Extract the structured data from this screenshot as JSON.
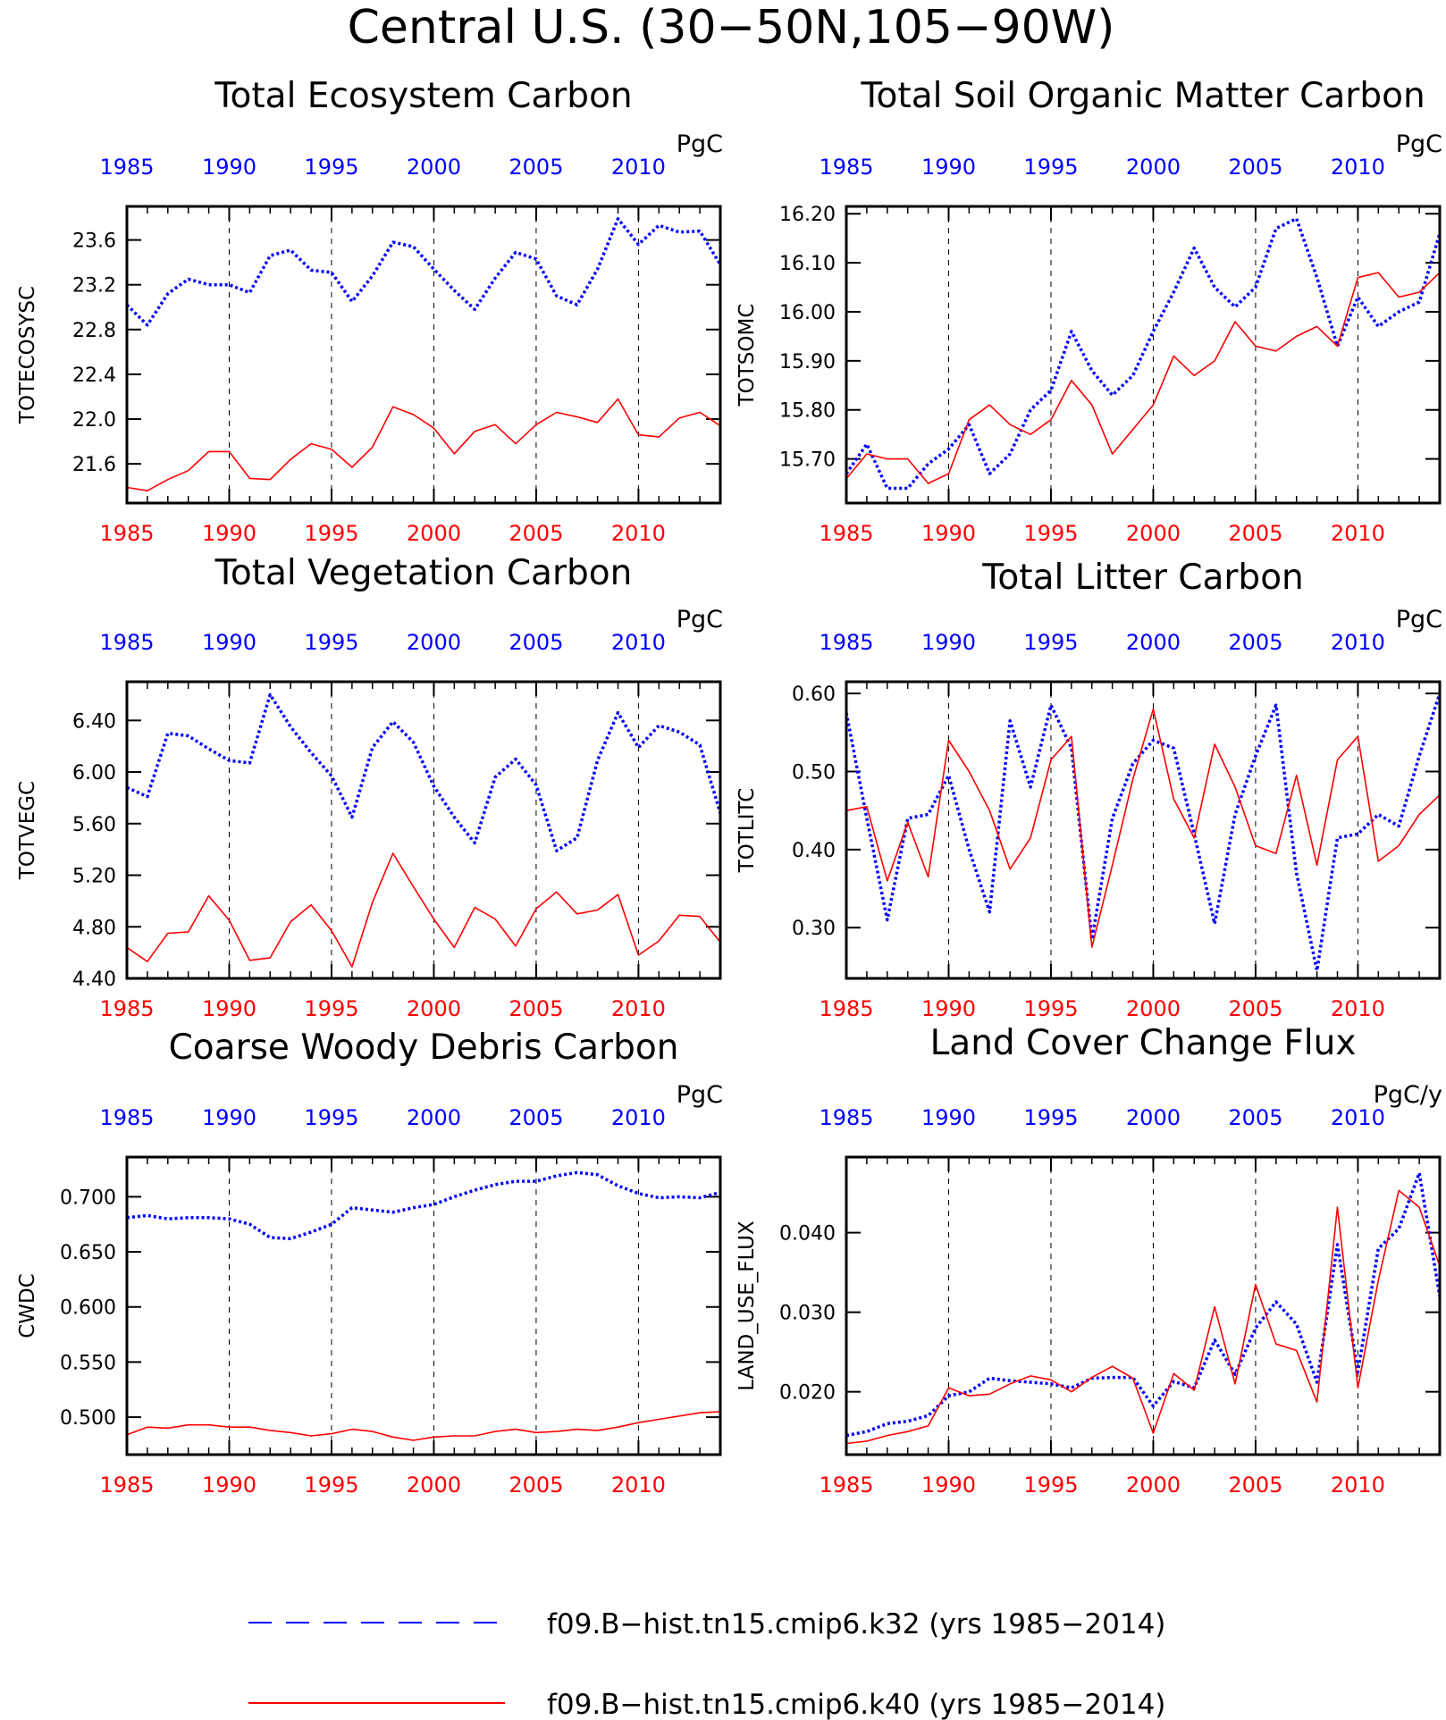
{
  "figure": {
    "title": "Central U.S. (30−50N,105−90W)",
    "legend": [
      {
        "label": "f09.B−hist.tn15.cmip6.k32 (yrs 1985−2014)",
        "color": "#0000ff",
        "style": "dashed"
      },
      {
        "label": "f09.B−hist.tn15.cmip6.k40 (yrs 1985−2014)",
        "color": "#ff0000",
        "style": "solid"
      }
    ]
  },
  "chart_data": [
    {
      "type": "line",
      "title": "Total Ecosystem Carbon",
      "ylabel": "TOTECOSYSC",
      "units": "PgC",
      "xlim": [
        1985,
        2014
      ],
      "ylim": [
        21.25,
        23.9
      ],
      "yticks": [
        "21.6",
        "22.0",
        "22.4",
        "22.8",
        "23.2",
        "23.6"
      ],
      "xticks": [
        "1985",
        "1990",
        "1995",
        "2000",
        "2005",
        "2010"
      ],
      "x": [
        1985,
        1986,
        1987,
        1988,
        1989,
        1990,
        1991,
        1992,
        1993,
        1994,
        1995,
        1996,
        1997,
        1998,
        1999,
        2000,
        2001,
        2002,
        2003,
        2004,
        2005,
        2006,
        2007,
        2008,
        2009,
        2010,
        2011,
        2012,
        2013,
        2014
      ],
      "series": [
        {
          "color": "#0000ff",
          "style": "dashed",
          "values": [
            23.02,
            22.84,
            23.12,
            23.25,
            23.2,
            23.2,
            23.13,
            23.46,
            23.51,
            23.33,
            23.31,
            23.05,
            23.28,
            23.58,
            23.54,
            23.34,
            23.15,
            22.98,
            23.26,
            23.49,
            23.43,
            23.1,
            23.02,
            23.34,
            23.79,
            23.56,
            23.73,
            23.67,
            23.68,
            23.38
          ]
        },
        {
          "color": "#ff0000",
          "style": "solid",
          "values": [
            21.39,
            21.36,
            21.46,
            21.54,
            21.71,
            21.71,
            21.47,
            21.46,
            21.64,
            21.78,
            21.73,
            21.57,
            21.75,
            22.11,
            22.04,
            21.92,
            21.69,
            21.89,
            21.95,
            21.78,
            21.95,
            22.06,
            22.02,
            21.97,
            22.18,
            21.86,
            21.84,
            22.01,
            22.06,
            21.94
          ]
        }
      ]
    },
    {
      "type": "line",
      "title": "Total Soil Organic Matter Carbon",
      "ylabel": "TOTSOMC",
      "units": "PgC",
      "xlim": [
        1985,
        2014
      ],
      "ylim": [
        15.61,
        16.215
      ],
      "yticks": [
        "15.70",
        "15.80",
        "15.90",
        "16.00",
        "16.10",
        "16.20"
      ],
      "xticks": [
        "1985",
        "1990",
        "1995",
        "2000",
        "2005",
        "2010"
      ],
      "x": [
        1985,
        1986,
        1987,
        1988,
        1989,
        1990,
        1991,
        1992,
        1993,
        1994,
        1995,
        1996,
        1997,
        1998,
        1999,
        2000,
        2001,
        2002,
        2003,
        2004,
        2005,
        2006,
        2007,
        2008,
        2009,
        2010,
        2011,
        2012,
        2013,
        2014
      ],
      "series": [
        {
          "color": "#0000ff",
          "style": "dashed",
          "values": [
            15.67,
            15.73,
            15.64,
            15.64,
            15.69,
            15.72,
            15.77,
            15.67,
            15.71,
            15.8,
            15.84,
            15.96,
            15.88,
            15.83,
            15.87,
            15.96,
            16.04,
            16.13,
            16.05,
            16.01,
            16.05,
            16.17,
            16.19,
            16.07,
            15.93,
            16.03,
            15.97,
            16.0,
            16.02,
            16.16
          ]
        },
        {
          "color": "#ff0000",
          "style": "solid",
          "values": [
            15.66,
            15.71,
            15.7,
            15.7,
            15.65,
            15.67,
            15.78,
            15.81,
            15.77,
            15.75,
            15.78,
            15.86,
            15.81,
            15.71,
            15.76,
            15.81,
            15.91,
            15.87,
            15.9,
            15.98,
            15.93,
            15.92,
            15.95,
            15.97,
            15.93,
            16.07,
            16.08,
            16.03,
            16.04,
            16.08
          ]
        }
      ]
    },
    {
      "type": "line",
      "title": "Total Vegetation Carbon",
      "ylabel": "TOTVEGC",
      "units": "PgC",
      "xlim": [
        1985,
        2014
      ],
      "ylim": [
        4.4,
        6.7
      ],
      "yticks": [
        "4.40",
        "4.80",
        "5.20",
        "5.60",
        "6.00",
        "6.40"
      ],
      "xticks": [
        "1985",
        "1990",
        "1995",
        "2000",
        "2005",
        "2010"
      ],
      "x": [
        1985,
        1986,
        1987,
        1988,
        1989,
        1990,
        1991,
        1992,
        1993,
        1994,
        1995,
        1996,
        1997,
        1998,
        1999,
        2000,
        2001,
        2002,
        2003,
        2004,
        2005,
        2006,
        2007,
        2008,
        2009,
        2010,
        2011,
        2012,
        2013,
        2014
      ],
      "series": [
        {
          "color": "#0000ff",
          "style": "dashed",
          "values": [
            5.88,
            5.81,
            6.3,
            6.28,
            6.18,
            6.09,
            6.07,
            6.6,
            6.35,
            6.15,
            5.97,
            5.65,
            6.19,
            6.39,
            6.23,
            5.89,
            5.65,
            5.45,
            5.96,
            6.1,
            5.9,
            5.39,
            5.49,
            6.09,
            6.46,
            6.19,
            6.36,
            6.31,
            6.21,
            5.68
          ]
        },
        {
          "color": "#ff0000",
          "style": "solid",
          "values": [
            4.64,
            4.53,
            4.75,
            4.76,
            5.04,
            4.85,
            4.54,
            4.56,
            4.84,
            4.97,
            4.77,
            4.49,
            4.99,
            5.37,
            5.11,
            4.86,
            4.64,
            4.95,
            4.86,
            4.65,
            4.94,
            5.07,
            4.9,
            4.93,
            5.05,
            4.58,
            4.69,
            4.89,
            4.88,
            4.68
          ]
        }
      ]
    },
    {
      "type": "line",
      "title": "Total Litter Carbon",
      "ylabel": "TOTLITC",
      "units": "PgC",
      "xlim": [
        1985,
        2014
      ],
      "ylim": [
        0.235,
        0.615
      ],
      "yticks": [
        "0.30",
        "0.40",
        "0.50",
        "0.60"
      ],
      "xticks": [
        "1985",
        "1990",
        "1995",
        "2000",
        "2005",
        "2010"
      ],
      "x": [
        1985,
        1986,
        1987,
        1988,
        1989,
        1990,
        1991,
        1992,
        1993,
        1994,
        1995,
        1996,
        1997,
        1998,
        1999,
        2000,
        2001,
        2002,
        2003,
        2004,
        2005,
        2006,
        2007,
        2008,
        2009,
        2010,
        2011,
        2012,
        2013,
        2014
      ],
      "series": [
        {
          "color": "#0000ff",
          "style": "dashed",
          "values": [
            0.575,
            0.44,
            0.31,
            0.44,
            0.445,
            0.495,
            0.4,
            0.32,
            0.565,
            0.48,
            0.585,
            0.53,
            0.285,
            0.44,
            0.51,
            0.54,
            0.53,
            0.42,
            0.305,
            0.445,
            0.52,
            0.585,
            0.37,
            0.245,
            0.415,
            0.42,
            0.445,
            0.43,
            0.52,
            0.6
          ]
        },
        {
          "color": "#ff0000",
          "style": "solid",
          "values": [
            0.45,
            0.455,
            0.36,
            0.435,
            0.365,
            0.54,
            0.5,
            0.45,
            0.375,
            0.415,
            0.515,
            0.545,
            0.275,
            0.38,
            0.49,
            0.58,
            0.465,
            0.415,
            0.535,
            0.48,
            0.405,
            0.395,
            0.495,
            0.38,
            0.515,
            0.545,
            0.385,
            0.405,
            0.445,
            0.47
          ]
        }
      ]
    },
    {
      "type": "line",
      "title": "Coarse Woody Debris Carbon",
      "ylabel": "CWDC",
      "units": "PgC",
      "xlim": [
        1985,
        2014
      ],
      "ylim": [
        0.466,
        0.736
      ],
      "yticks": [
        "0.500",
        "0.550",
        "0.600",
        "0.650",
        "0.700"
      ],
      "xticks": [
        "1985",
        "1990",
        "1995",
        "2000",
        "2005",
        "2010"
      ],
      "x": [
        1985,
        1986,
        1987,
        1988,
        1989,
        1990,
        1991,
        1992,
        1993,
        1994,
        1995,
        1996,
        1997,
        1998,
        1999,
        2000,
        2001,
        2002,
        2003,
        2004,
        2005,
        2006,
        2007,
        2008,
        2009,
        2010,
        2011,
        2012,
        2013,
        2014
      ],
      "series": [
        {
          "color": "#0000ff",
          "style": "dashed",
          "values": [
            0.681,
            0.683,
            0.68,
            0.681,
            0.681,
            0.68,
            0.675,
            0.663,
            0.662,
            0.668,
            0.675,
            0.69,
            0.688,
            0.686,
            0.69,
            0.693,
            0.7,
            0.706,
            0.711,
            0.714,
            0.714,
            0.719,
            0.722,
            0.72,
            0.71,
            0.703,
            0.699,
            0.7,
            0.699,
            0.704
          ]
        },
        {
          "color": "#ff0000",
          "style": "solid",
          "values": [
            0.484,
            0.491,
            0.49,
            0.493,
            0.493,
            0.491,
            0.491,
            0.488,
            0.486,
            0.483,
            0.485,
            0.489,
            0.487,
            0.482,
            0.479,
            0.482,
            0.483,
            0.483,
            0.487,
            0.489,
            0.486,
            0.487,
            0.489,
            0.488,
            0.491,
            0.495,
            0.498,
            0.501,
            0.504,
            0.505
          ]
        }
      ]
    },
    {
      "type": "line",
      "title": "Land Cover Change Flux",
      "ylabel": "LAND_USE_FLUX",
      "units": "PgC/y",
      "xlim": [
        1985,
        2014
      ],
      "ylim": [
        0.0121,
        0.0495
      ],
      "yticks": [
        "0.020",
        "0.030",
        "0.040"
      ],
      "xticks": [
        "1985",
        "1990",
        "1995",
        "2000",
        "2005",
        "2010"
      ],
      "x": [
        1985,
        1986,
        1987,
        1988,
        1989,
        1990,
        1991,
        1992,
        1993,
        1994,
        1995,
        1996,
        1997,
        1998,
        1999,
        2000,
        2001,
        2002,
        2003,
        2004,
        2005,
        2006,
        2007,
        2008,
        2009,
        2010,
        2011,
        2012,
        2013,
        2014
      ],
      "series": [
        {
          "color": "#0000ff",
          "style": "dashed",
          "values": [
            0.0145,
            0.015,
            0.016,
            0.0163,
            0.017,
            0.0195,
            0.02,
            0.0217,
            0.0214,
            0.0212,
            0.021,
            0.0205,
            0.0217,
            0.0218,
            0.0218,
            0.0182,
            0.0213,
            0.0205,
            0.0265,
            0.0222,
            0.028,
            0.0313,
            0.0285,
            0.0212,
            0.0385,
            0.0225,
            0.038,
            0.0405,
            0.0475,
            0.032
          ]
        },
        {
          "color": "#ff0000",
          "style": "solid",
          "values": [
            0.0135,
            0.0138,
            0.0145,
            0.015,
            0.0157,
            0.0205,
            0.0195,
            0.0197,
            0.021,
            0.022,
            0.0215,
            0.02,
            0.0218,
            0.0232,
            0.0217,
            0.0148,
            0.0223,
            0.0202,
            0.0307,
            0.021,
            0.0335,
            0.026,
            0.0252,
            0.0187,
            0.0432,
            0.0205,
            0.034,
            0.0453,
            0.0432,
            0.0358
          ]
        }
      ]
    }
  ]
}
